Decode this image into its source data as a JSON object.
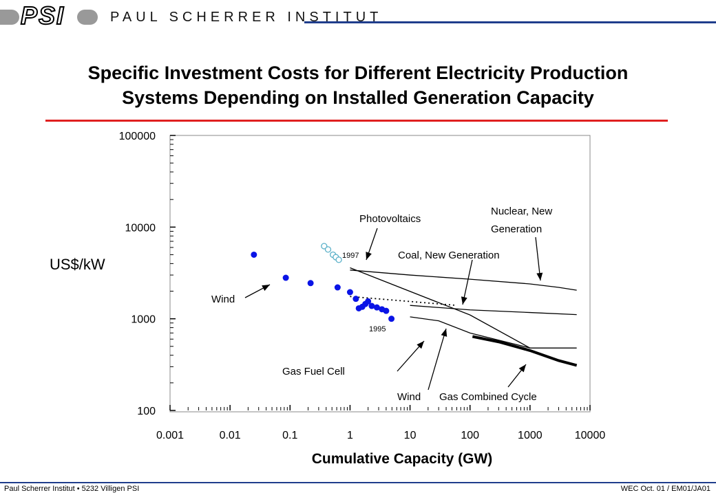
{
  "header": {
    "logo_text": "PSI",
    "institute_name": "PAUL SCHERRER INSTITUT"
  },
  "colors": {
    "header_rule": "#1f3d8c",
    "title_rule": "#e02020",
    "wind_points": "#0a14e6",
    "pv_points": "#5ab0c8"
  },
  "footer": {
    "left": "Paul Scherrer Institut • 5232 Villigen PSI",
    "right": "WEC Oct. 01 / EM01/JA01"
  },
  "chart_data": {
    "type": "scatter",
    "title_line1": "Specific Investment Costs for Different Electricity Production",
    "title_line2": "Systems Depending on Installed Generation Capacity",
    "xlabel": "Cumulative Capacity (GW)",
    "ylabel": "US$/kW",
    "xscale": "log",
    "yscale": "log",
    "xlim": [
      0.001,
      10000
    ],
    "ylim": [
      100,
      100000
    ],
    "x_tick_labels": [
      "0.001",
      "0.01",
      "0.1",
      "1",
      "10",
      "100",
      "1000",
      "10000"
    ],
    "y_tick_labels": [
      "100",
      "1000",
      "10000",
      "100000"
    ],
    "annotations": {
      "photovoltaics": "Photovoltaics",
      "nuclear_line1": "Nuclear, New",
      "nuclear_line2": "Generation",
      "coal": "Coal, New Generation",
      "wind_upper": "Wind",
      "year_1997": "1997",
      "year_1995": "1995",
      "gas_fuel_cell": "Gas Fuel Cell",
      "wind_lower": "Wind",
      "gas_combined_cycle": "Gas Combined Cycle"
    },
    "series": [
      {
        "name": "Wind",
        "kind": "points",
        "color": "#0a14e6",
        "x": [
          0.025,
          0.085,
          0.22,
          0.62,
          1.0,
          1.25,
          1.4,
          1.6,
          1.8,
          2.0,
          2.3,
          2.8,
          3.4,
          4.0,
          4.9
        ],
        "y": [
          5000,
          2800,
          2450,
          2200,
          1950,
          1650,
          1300,
          1350,
          1450,
          1550,
          1380,
          1330,
          1270,
          1220,
          1000
        ]
      },
      {
        "name": "Photovoltaics",
        "kind": "points",
        "color": "#5ab0c8",
        "x": [
          0.37,
          0.43,
          0.52,
          0.58,
          0.65
        ],
        "y": [
          6200,
          5700,
          5000,
          4700,
          4400
        ]
      },
      {
        "name": "Wind",
        "kind": "dotted-line",
        "x": [
          1.0,
          60.0
        ],
        "y": [
          1750,
          1400
        ]
      },
      {
        "name": "Photovoltaics",
        "kind": "line",
        "x": [
          1.0,
          100,
          1000
        ],
        "y": [
          3600,
          1100,
          480
        ]
      },
      {
        "name": "Nuclear, New Generation",
        "kind": "line",
        "x": [
          1.0,
          10,
          100,
          1000,
          3000,
          6000
        ],
        "y": [
          3400,
          3000,
          2700,
          2400,
          2200,
          2050
        ]
      },
      {
        "name": "Coal, New Generation",
        "kind": "line",
        "x": [
          10,
          100,
          1000,
          6000
        ],
        "y": [
          1400,
          1250,
          1170,
          1110
        ]
      },
      {
        "name": "Gas Fuel Cell",
        "kind": "line",
        "x": [
          10,
          30,
          100,
          1000,
          6000
        ],
        "y": [
          1050,
          950,
          700,
          480,
          480
        ]
      },
      {
        "name": "Gas Combined Cycle",
        "kind": "line",
        "x": [
          110,
          300,
          1000,
          3000,
          6000
        ],
        "y": [
          640,
          560,
          450,
          350,
          310
        ]
      }
    ]
  }
}
